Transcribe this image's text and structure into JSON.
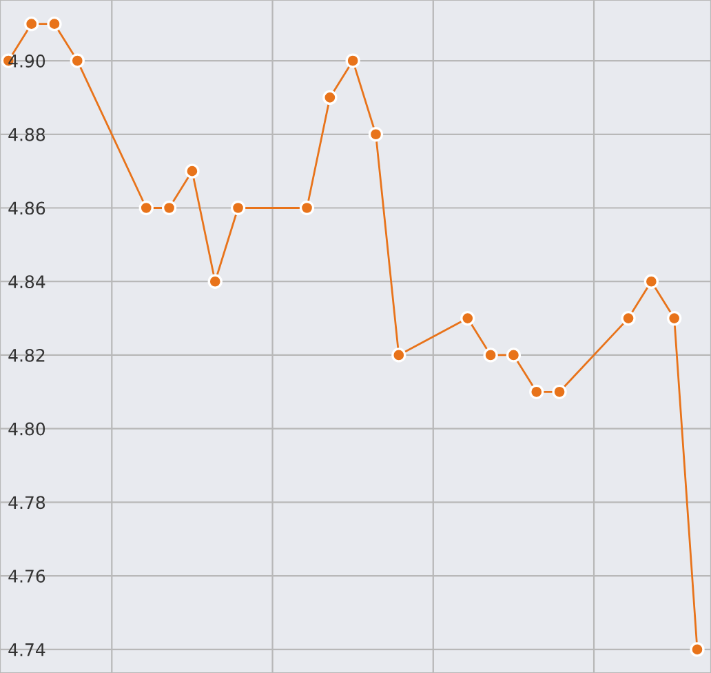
{
  "chart_data": {
    "type": "line",
    "categories": [
      null,
      null,
      null,
      null,
      null,
      null,
      null,
      null,
      null,
      null,
      null,
      null,
      null,
      null,
      null,
      null,
      null,
      null,
      null,
      null,
      null,
      null,
      null,
      null,
      null,
      null,
      null,
      null,
      null,
      null,
      null
    ],
    "series": [
      {
        "color": "#e8731a",
        "values": [
          4.9,
          4.91,
          4.91,
          4.9,
          null,
          null,
          4.86,
          4.86,
          4.87,
          4.84,
          4.86,
          null,
          null,
          4.86,
          4.89,
          4.9,
          4.88,
          4.82,
          null,
          null,
          4.83,
          4.82,
          4.82,
          4.81,
          4.81,
          null,
          null,
          4.83,
          4.84,
          4.83,
          4.74
        ]
      }
    ],
    "ylim": [
      4.7336,
      4.9165
    ],
    "yticks": [
      {
        "value": 4.74,
        "label": "4.74"
      },
      {
        "value": 4.76,
        "label": "4.76"
      },
      {
        "value": 4.78,
        "label": "4.78"
      },
      {
        "value": 4.8,
        "label": "4.80"
      },
      {
        "value": 4.82,
        "label": "4.82"
      },
      {
        "value": 4.84,
        "label": "4.84"
      },
      {
        "value": 4.86,
        "label": "4.86"
      },
      {
        "value": 4.88,
        "label": "4.88"
      },
      {
        "value": 4.9,
        "label": "4.90"
      }
    ],
    "tick_labels": "y",
    "grid": true,
    "marker": "circle",
    "line_style": "solid"
  }
}
